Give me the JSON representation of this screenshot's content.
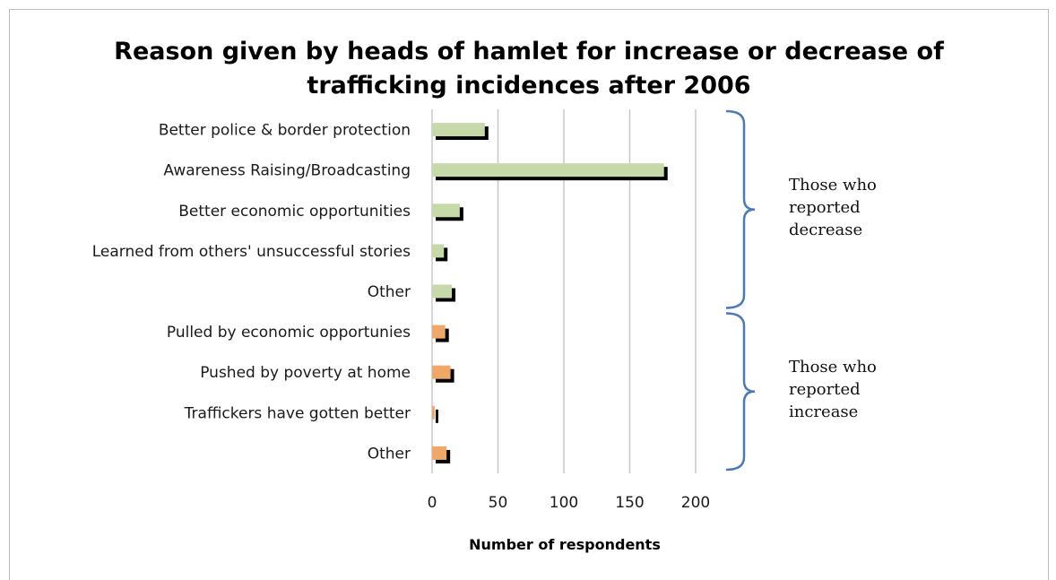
{
  "chart_data": {
    "type": "bar",
    "orientation": "horizontal",
    "title_lines": [
      "Reason given by heads of hamlet for increase or decrease of",
      "trafficking incidences after 2006"
    ],
    "xlabel": "Number of respondents",
    "ylabel": "",
    "xlim": [
      0,
      200
    ],
    "xticks": [
      "0",
      "50",
      "100",
      "150",
      "200"
    ],
    "grid": "vertical",
    "categories": [
      "Better  police &  border protection",
      "Awareness Raising/Broadcasting",
      "Better economic opportunities",
      "Learned from others' unsuccessful stories",
      "Other",
      "Pulled by economic opportunies",
      "Pushed by poverty at home",
      "Traffickers have gotten better",
      "Other"
    ],
    "values": [
      40,
      176,
      21,
      9,
      15,
      10,
      14,
      2,
      11
    ],
    "bar_colors": [
      "#c7d9a9",
      "#c7d9a9",
      "#c7d9a9",
      "#c7d9a9",
      "#c7d9a9",
      "#f0a868",
      "#f0a868",
      "#f0a868",
      "#f0a868"
    ],
    "shadow_color": "#000000",
    "groups": [
      {
        "label_lines": [
          "Those who",
          "reported",
          "decrease"
        ],
        "from": 0,
        "to": 4
      },
      {
        "label_lines": [
          "Those who",
          "reported",
          "increase"
        ],
        "from": 5,
        "to": 8
      }
    ],
    "brace_color": "#4a7ab8"
  }
}
